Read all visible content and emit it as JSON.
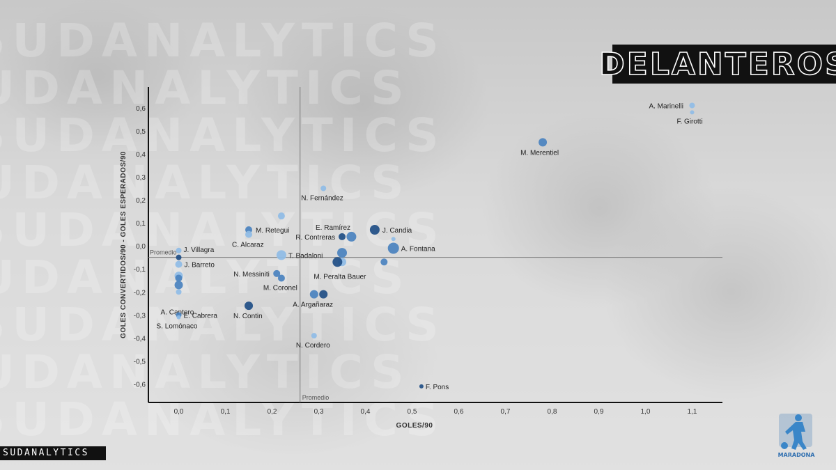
{
  "title": "DELANTEROS",
  "brand": "SUDANALYTICS",
  "watermark_text": "SUDANALYTICS",
  "logo_text": "MARADONA",
  "colors": {
    "light": "#8fbce6",
    "mid": "#4a82bf",
    "dark": "#1f4e86"
  },
  "chart_data": {
    "type": "scatter",
    "xlabel": "GOLES/90",
    "ylabel": "GOLES CONVERTIDOS/90 - GOLES ESPERADOS/90",
    "xlim": [
      -0.065,
      1.165
    ],
    "ylim": [
      -0.68,
      0.69
    ],
    "xticks": [
      0.0,
      0.1,
      0.2,
      0.3,
      0.4,
      0.5,
      0.6,
      0.7,
      0.8,
      0.9,
      1.0,
      1.1
    ],
    "xtick_labels": [
      "0,0",
      "0,1",
      "0,2",
      "0,3",
      "0,4",
      "0,5",
      "0,6",
      "0,7",
      "0,8",
      "0,9",
      "1,0",
      "1,1"
    ],
    "yticks": [
      0.6,
      0.5,
      0.4,
      0.3,
      0.2,
      0.1,
      0.0,
      -0.1,
      -0.2,
      -0.3,
      -0.4,
      -0.5,
      -0.6
    ],
    "ytick_labels": [
      "0,6",
      "0,5",
      "0,4",
      "0,3",
      "0,2",
      "0,1",
      "0,0",
      "-0,1",
      "-0,2",
      "-0,3",
      "-0,4",
      "-0,5",
      "-0,6"
    ],
    "avg_x": 0.26,
    "avg_y": -0.05,
    "avg_label": "Promedio",
    "grid": false,
    "points": [
      {
        "x": 1.1,
        "y": 0.61,
        "label": "A. Marinelli",
        "size": 4,
        "shade": "light",
        "lx": -62,
        "ly": 4
      },
      {
        "x": 1.1,
        "y": 0.58,
        "label": "F. Girotti",
        "size": 3,
        "shade": "light",
        "lx": -22,
        "ly": 16
      },
      {
        "x": 0.78,
        "y": 0.45,
        "label": "M. Merentiel",
        "size": 6,
        "shade": "mid",
        "lx": -32,
        "ly": 18
      },
      {
        "x": 0.31,
        "y": 0.25,
        "label": "N. Fernández",
        "size": 4,
        "shade": "light",
        "lx": -32,
        "ly": 17
      },
      {
        "x": 0.22,
        "y": 0.13,
        "label": "",
        "size": 5,
        "shade": "light"
      },
      {
        "x": 0.15,
        "y": 0.07,
        "label": "M. Retegui",
        "size": 5,
        "shade": "mid",
        "lx": 10,
        "ly": 4
      },
      {
        "x": 0.15,
        "y": 0.05,
        "label": "C. Alcaraz",
        "size": 5,
        "shade": "light",
        "lx": -24,
        "ly": 18
      },
      {
        "x": 0.42,
        "y": 0.07,
        "label": "J. Candia",
        "size": 7,
        "shade": "dark",
        "lx": 11,
        "ly": 4
      },
      {
        "x": 0.35,
        "y": 0.04,
        "label": "E. Ramírez",
        "size": 5,
        "shade": "dark",
        "lx": -38,
        "ly": -10
      },
      {
        "x": 0.37,
        "y": 0.04,
        "label": "R. Contreras",
        "size": 7,
        "shade": "mid",
        "lx": -80,
        "ly": 4
      },
      {
        "x": 0.46,
        "y": 0.03,
        "label": "",
        "size": 3,
        "shade": "light"
      },
      {
        "x": 0.46,
        "y": -0.01,
        "label": "A. Fontana",
        "size": 8,
        "shade": "mid",
        "lx": 11,
        "ly": 4
      },
      {
        "x": 0.22,
        "y": -0.04,
        "label": "T. Badaloni",
        "size": 7,
        "shade": "light",
        "lx": 10,
        "ly": 4
      },
      {
        "x": 0.35,
        "y": -0.03,
        "label": "",
        "size": 7,
        "shade": "mid"
      },
      {
        "x": 0.35,
        "y": -0.07,
        "label": "",
        "size": 6,
        "shade": "light"
      },
      {
        "x": 0.34,
        "y": -0.07,
        "label": "M. Peralta Bauer",
        "size": 7,
        "shade": "dark",
        "lx": -34,
        "ly": 24
      },
      {
        "x": 0.44,
        "y": -0.07,
        "label": "",
        "size": 5,
        "shade": "mid"
      },
      {
        "x": 0.21,
        "y": -0.12,
        "label": "N. Messiniti",
        "size": 5,
        "shade": "mid",
        "lx": -62,
        "ly": 4
      },
      {
        "x": 0.22,
        "y": -0.14,
        "label": "M. Coronel",
        "size": 5,
        "shade": "mid",
        "lx": -26,
        "ly": 17
      },
      {
        "x": 0.29,
        "y": -0.21,
        "label": "",
        "size": 6,
        "shade": "mid"
      },
      {
        "x": 0.31,
        "y": -0.21,
        "label": "A. Argañaraz",
        "size": 6,
        "shade": "dark",
        "lx": -44,
        "ly": 18
      },
      {
        "x": 0.15,
        "y": -0.26,
        "label": "N. Contin",
        "size": 6,
        "shade": "dark",
        "lx": -22,
        "ly": 18
      },
      {
        "x": 0.29,
        "y": -0.39,
        "label": "N. Cordero",
        "size": 4,
        "shade": "light",
        "lx": -26,
        "ly": 17
      },
      {
        "x": 0.52,
        "y": -0.61,
        "label": "F. Pons",
        "size": 3,
        "shade": "dark",
        "lx": 6,
        "ly": 4
      },
      {
        "x": 0.0,
        "y": -0.02,
        "label": "J. Villagra",
        "size": 4,
        "shade": "light",
        "lx": 7,
        "ly": 2
      },
      {
        "x": 0.0,
        "y": -0.05,
        "label": "",
        "size": 4,
        "shade": "dark"
      },
      {
        "x": 0.0,
        "y": -0.08,
        "label": "J. Barreto",
        "size": 5,
        "shade": "light",
        "lx": 8,
        "ly": 4
      },
      {
        "x": 0.0,
        "y": -0.13,
        "label": "",
        "size": 6,
        "shade": "light"
      },
      {
        "x": 0.0,
        "y": -0.14,
        "label": "",
        "size": 5,
        "shade": "mid"
      },
      {
        "x": 0.0,
        "y": -0.17,
        "label": "",
        "size": 6,
        "shade": "mid"
      },
      {
        "x": 0.0,
        "y": -0.2,
        "label": "A. Cantero",
        "size": 4,
        "shade": "light",
        "lx": -26,
        "ly": 32
      },
      {
        "x": 0.0,
        "y": -0.3,
        "label": "E. Cabrera",
        "size": 4,
        "shade": "mid",
        "lx": 7,
        "ly": 0
      },
      {
        "x": 0.0,
        "y": -0.31,
        "label": "S. Lomónaco",
        "size": 3,
        "shade": "light",
        "lx": -32,
        "ly": 16
      }
    ]
  }
}
